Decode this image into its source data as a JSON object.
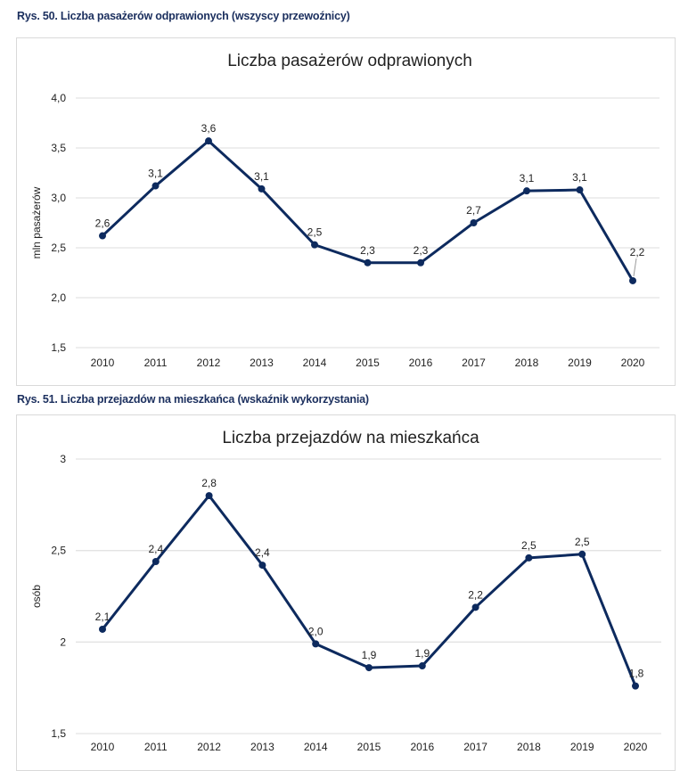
{
  "captions": [
    "Rys. 50. Liczba pasażerów odprawionych (wszyscy przewoźnicy)",
    "Rys. 51. Liczba przejazdów na mieszkańca (wskaźnik wykorzystania)"
  ],
  "colors": {
    "series": "#0d2a5e",
    "caption": "#1b2f5e",
    "grid": "#e3e3e3"
  },
  "chart_data": [
    {
      "type": "line",
      "title": "Liczba pasażerów odprawionych",
      "xlabel": "",
      "ylabel": "mln pasażerów",
      "categories": [
        "2010",
        "2011",
        "2012",
        "2013",
        "2014",
        "2015",
        "2016",
        "2017",
        "2018",
        "2019",
        "2020"
      ],
      "series": [
        {
          "name": "Liczba pasażerów odprawionych",
          "values": [
            2.62,
            3.12,
            3.57,
            3.09,
            2.53,
            2.35,
            2.35,
            2.75,
            3.07,
            3.08,
            2.17
          ],
          "labels": [
            "2,6",
            "3,1",
            "3,6",
            "3,1",
            "2,5",
            "2,3",
            "2,3",
            "2,7",
            "3,1",
            "3,1",
            "2,2"
          ]
        }
      ],
      "ylim": [
        1.5,
        4.0
      ],
      "yticks": [
        1.5,
        2.0,
        2.5,
        3.0,
        3.5,
        4.0
      ],
      "ytick_labels": [
        "1,5",
        "2,0",
        "2,5",
        "3,0",
        "3,5",
        "4,0"
      ],
      "grid": true,
      "legend": "none"
    },
    {
      "type": "line",
      "title": "Liczba przejazdów na mieszkańca",
      "xlabel": "",
      "ylabel": "osób",
      "categories": [
        "2010",
        "2011",
        "2012",
        "2013",
        "2014",
        "2015",
        "2016",
        "2017",
        "2018",
        "2019",
        "2020"
      ],
      "series": [
        {
          "name": "Liczba przejazdów na mieszkańca",
          "values": [
            2.07,
            2.44,
            2.8,
            2.42,
            1.99,
            1.86,
            1.87,
            2.19,
            2.46,
            2.48,
            1.76
          ],
          "labels": [
            "2,1",
            "2,4",
            "2,8",
            "2,4",
            "2,0",
            "1,9",
            "1,9",
            "2,2",
            "2,5",
            "2,5",
            "1,8"
          ]
        }
      ],
      "ylim": [
        1.5,
        3.0
      ],
      "yticks": [
        1.5,
        2.0,
        2.5,
        3.0
      ],
      "ytick_labels": [
        "1,5",
        "2",
        "2,5",
        "3"
      ],
      "grid": true,
      "legend": "none"
    }
  ]
}
